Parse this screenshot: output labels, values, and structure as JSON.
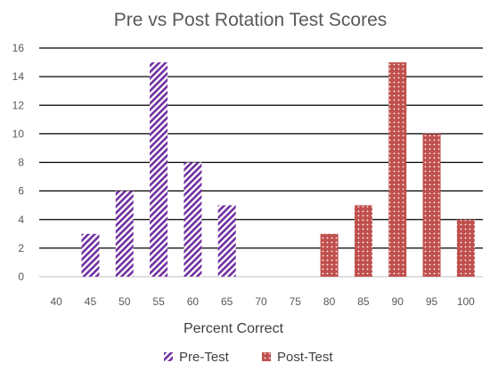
{
  "chart_data": {
    "type": "bar",
    "title": "Pre vs Post Rotation Test Scores",
    "xlabel": "Percent Correct",
    "ylabel": "",
    "categories": [
      "40",
      "45",
      "50",
      "55",
      "60",
      "65",
      "70",
      "75",
      "80",
      "85",
      "90",
      "95",
      "100"
    ],
    "series": [
      {
        "name": "Pre-Test",
        "values": [
          0,
          3,
          6,
          15,
          8,
          5,
          0,
          0,
          0,
          0,
          0,
          0,
          0
        ],
        "color": "#7030a0",
        "pattern": "diagonal-stripes"
      },
      {
        "name": "Post-Test",
        "values": [
          0,
          0,
          0,
          0,
          0,
          0,
          0,
          0,
          3,
          5,
          15,
          10,
          4
        ],
        "color": "#c0504d",
        "pattern": "dots"
      }
    ],
    "ylim": [
      0,
      16
    ],
    "yticks": [
      0,
      2,
      4,
      6,
      8,
      10,
      12,
      14,
      16
    ],
    "grid": true,
    "legend": "bottom"
  }
}
